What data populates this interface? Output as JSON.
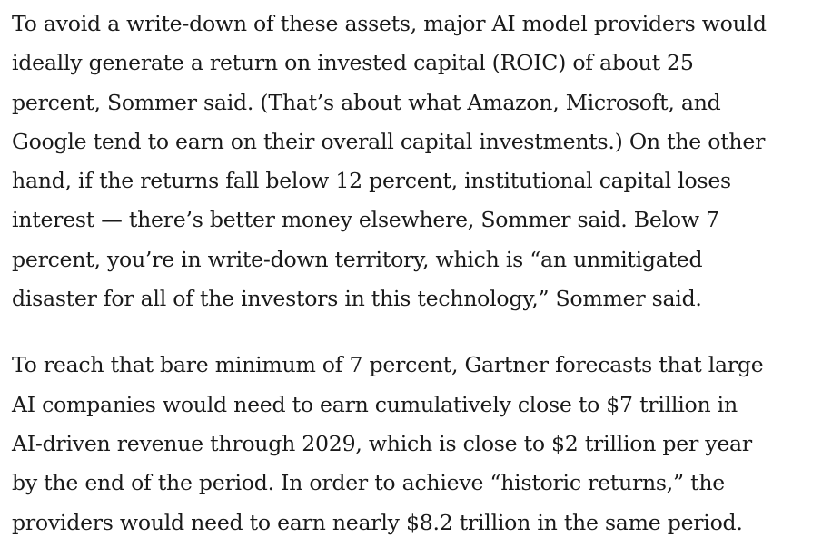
{
  "article": {
    "paragraphs": [
      {
        "lines": [
          "To avoid a write-down of these assets, major AI model providers would",
          "ideally generate a return on invested capital (ROIC) of about 25",
          "percent, Sommer said. (That’s about what Amazon, Microsoft, and",
          "Google tend to earn on their overall capital investments.) On the other",
          "hand, if the returns fall below 12 percent, institutional capital loses",
          "interest — there’s better money elsewhere, Sommer said. Below 7",
          "percent, you’re in write-down territory, which is “an unmitigated",
          "disaster for all of the investors in this technology,” Sommer said."
        ]
      },
      {
        "lines": [
          "To reach that bare minimum of 7 percent, Gartner forecasts that large",
          "AI companies would need to earn cumulatively close to $7 trillion in",
          "AI-driven revenue through 2029, which is close to $2 trillion per year",
          "by the end of the period. In order to achieve “historic returns,” the",
          "providers would need to earn nearly $8.2 trillion in the same period."
        ]
      }
    ]
  }
}
